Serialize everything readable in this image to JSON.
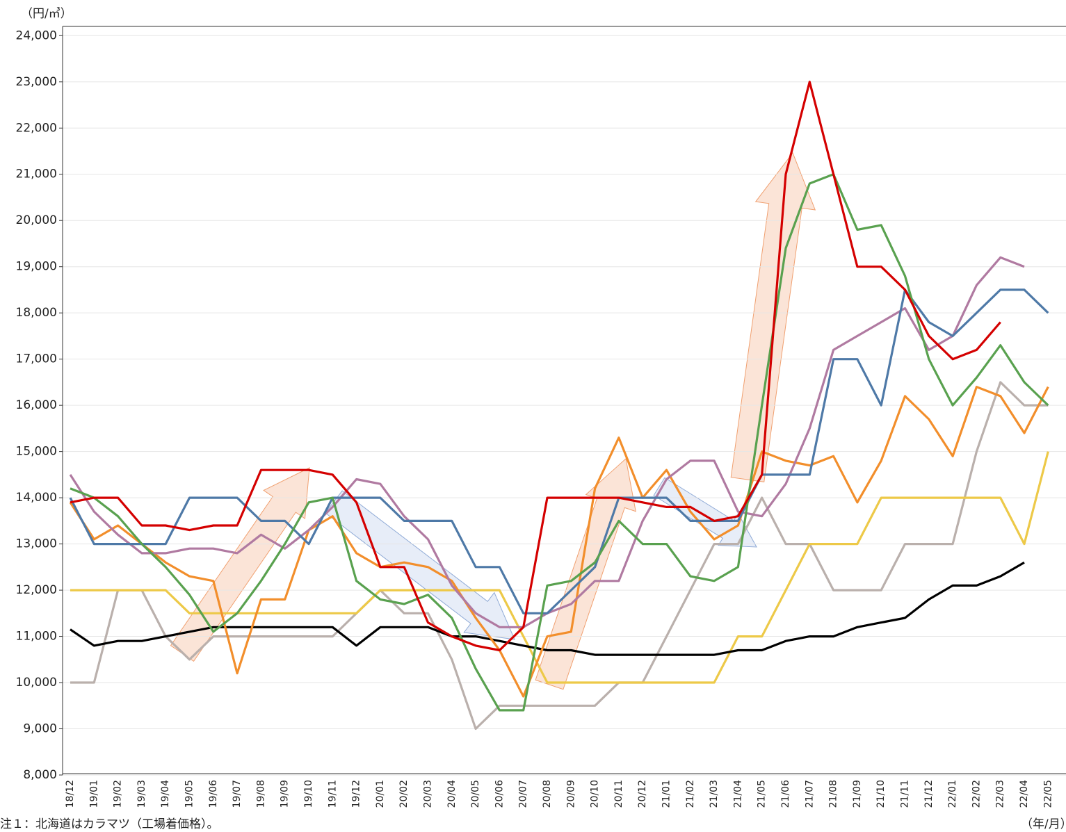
{
  "chart_data": {
    "type": "line",
    "y_unit": "（円/㎥）",
    "x_unit": "（年/月）",
    "note": "注１：北海道はカラマツ（工場着価格）。",
    "categories": [
      "18/12",
      "19/01",
      "19/02",
      "19/03",
      "19/04",
      "19/05",
      "19/06",
      "19/07",
      "19/08",
      "19/09",
      "19/10",
      "19/11",
      "19/12",
      "20/01",
      "20/02",
      "20/03",
      "20/04",
      "20/05",
      "20/06",
      "20/07",
      "20/08",
      "20/09",
      "20/10",
      "20/11",
      "20/12",
      "21/01",
      "21/02",
      "21/03",
      "21/04",
      "21/05",
      "21/06",
      "21/07",
      "21/08",
      "21/09",
      "21/10",
      "21/11",
      "21/12",
      "22/01",
      "22/02",
      "22/03",
      "22/04",
      "22/05"
    ],
    "ylim": [
      8000,
      24200
    ],
    "yticks": [
      {
        "value": 8000,
        "label": "8,000"
      },
      {
        "value": 9000,
        "label": "9,000"
      },
      {
        "value": 10000,
        "label": "10,000"
      },
      {
        "value": 11000,
        "label": "11,000"
      },
      {
        "value": 12000,
        "label": "12,000"
      },
      {
        "value": 13000,
        "label": "13,000"
      },
      {
        "value": 14000,
        "label": "14,000"
      },
      {
        "value": 15000,
        "label": "15,000"
      },
      {
        "value": 16000,
        "label": "16,000"
      },
      {
        "value": 17000,
        "label": "17,000"
      },
      {
        "value": 18000,
        "label": "18,000"
      },
      {
        "value": 19000,
        "label": "19,000"
      },
      {
        "value": 20000,
        "label": "20,000"
      },
      {
        "value": 21000,
        "label": "21,000"
      },
      {
        "value": 22000,
        "label": "22,000"
      },
      {
        "value": 23000,
        "label": "23,000"
      },
      {
        "value": 24000,
        "label": "24,000"
      }
    ],
    "grid": true,
    "series": [
      {
        "color": "#bab0ac",
        "values": [
          10000,
          10000,
          12000,
          12000,
          11000,
          10500,
          11000,
          11000,
          11000,
          11000,
          11000,
          11000,
          11500,
          12000,
          11500,
          11500,
          10500,
          9000,
          9500,
          9500,
          9500,
          9500,
          9500,
          10000,
          10000,
          11000,
          12000,
          13000,
          13000,
          14000,
          13000,
          13000,
          12000,
          12000,
          12000,
          13000,
          13000,
          13000,
          15000,
          16500,
          16000,
          16000
        ]
      },
      {
        "color": "#edc948",
        "values": [
          12000,
          12000,
          12000,
          12000,
          12000,
          11500,
          11500,
          11500,
          11500,
          11500,
          11500,
          11500,
          11500,
          12000,
          12000,
          12000,
          12000,
          12000,
          12000,
          11000,
          10000,
          10000,
          10000,
          10000,
          10000,
          10000,
          10000,
          10000,
          11000,
          11000,
          12000,
          13000,
          13000,
          13000,
          14000,
          14000,
          14000,
          14000,
          14000,
          14000,
          13000,
          15000
        ]
      },
      {
        "color": "#000000",
        "values": [
          11150,
          10800,
          10900,
          10900,
          11000,
          11100,
          11200,
          11200,
          11200,
          11200,
          11200,
          11200,
          10800,
          11200,
          11200,
          11200,
          11000,
          11000,
          10900,
          10800,
          10700,
          10700,
          10600,
          10600,
          10600,
          10600,
          10600,
          10600,
          10700,
          10700,
          10900,
          11000,
          11000,
          11200,
          11300,
          11400,
          11800,
          12100,
          12100,
          12300,
          12600,
          null
        ]
      },
      {
        "color": "#f28e2b",
        "values": [
          13900,
          13100,
          13400,
          13000,
          12600,
          12300,
          12200,
          10200,
          11800,
          11800,
          13300,
          13600,
          12800,
          12500,
          12600,
          12500,
          12200,
          11400,
          10700,
          9700,
          11000,
          11100,
          14200,
          15300,
          14000,
          14600,
          13700,
          13100,
          13400,
          15000,
          14800,
          14700,
          14900,
          13900,
          14800,
          16200,
          15700,
          14900,
          16400,
          16200,
          15400,
          16400
        ]
      },
      {
        "color": "#b07aa1",
        "values": [
          14500,
          13700,
          13200,
          12800,
          12800,
          12900,
          12900,
          12800,
          13200,
          12900,
          13300,
          13800,
          14400,
          14300,
          13600,
          13100,
          12100,
          11500,
          11200,
          11200,
          11500,
          11700,
          12200,
          12200,
          13500,
          14400,
          14800,
          14800,
          13700,
          13600,
          14300,
          15500,
          17200,
          17500,
          17800,
          18100,
          17200,
          17500,
          18600,
          19200,
          19000,
          null
        ]
      },
      {
        "color": "#4e79a7",
        "values": [
          14000,
          13000,
          13000,
          13000,
          13000,
          14000,
          14000,
          14000,
          13500,
          13500,
          13000,
          14000,
          14000,
          14000,
          13500,
          13500,
          13500,
          12500,
          12500,
          11500,
          11500,
          12000,
          12500,
          14000,
          14000,
          14000,
          13500,
          13500,
          13500,
          14500,
          14500,
          14500,
          17000,
          17000,
          16000,
          18500,
          17800,
          17500,
          18000,
          18500,
          18500,
          18000
        ]
      },
      {
        "color": "#59a14f",
        "values": [
          14200,
          14000,
          13600,
          13000,
          12500,
          11900,
          11100,
          11500,
          12200,
          13000,
          13900,
          14000,
          12200,
          11800,
          11700,
          11900,
          11400,
          10300,
          9400,
          9400,
          12100,
          12200,
          12600,
          13500,
          13000,
          13000,
          12300,
          12200,
          12500,
          16000,
          19400,
          20800,
          21000,
          19800,
          19900,
          18800,
          17000,
          16000,
          16600,
          17300,
          16500,
          16000
        ]
      },
      {
        "color": "#d40000",
        "values": [
          13900,
          14000,
          14000,
          13400,
          13400,
          13300,
          13400,
          13400,
          14600,
          14600,
          14600,
          14500,
          13900,
          12500,
          12500,
          11300,
          11000,
          10800,
          10700,
          11200,
          14000,
          14000,
          14000,
          14000,
          13900,
          13800,
          13800,
          13500,
          13600,
          14500,
          21000,
          23000,
          21000,
          19000,
          19000,
          18500,
          17500,
          17000,
          17200,
          17800,
          null,
          null
        ]
      }
    ]
  }
}
